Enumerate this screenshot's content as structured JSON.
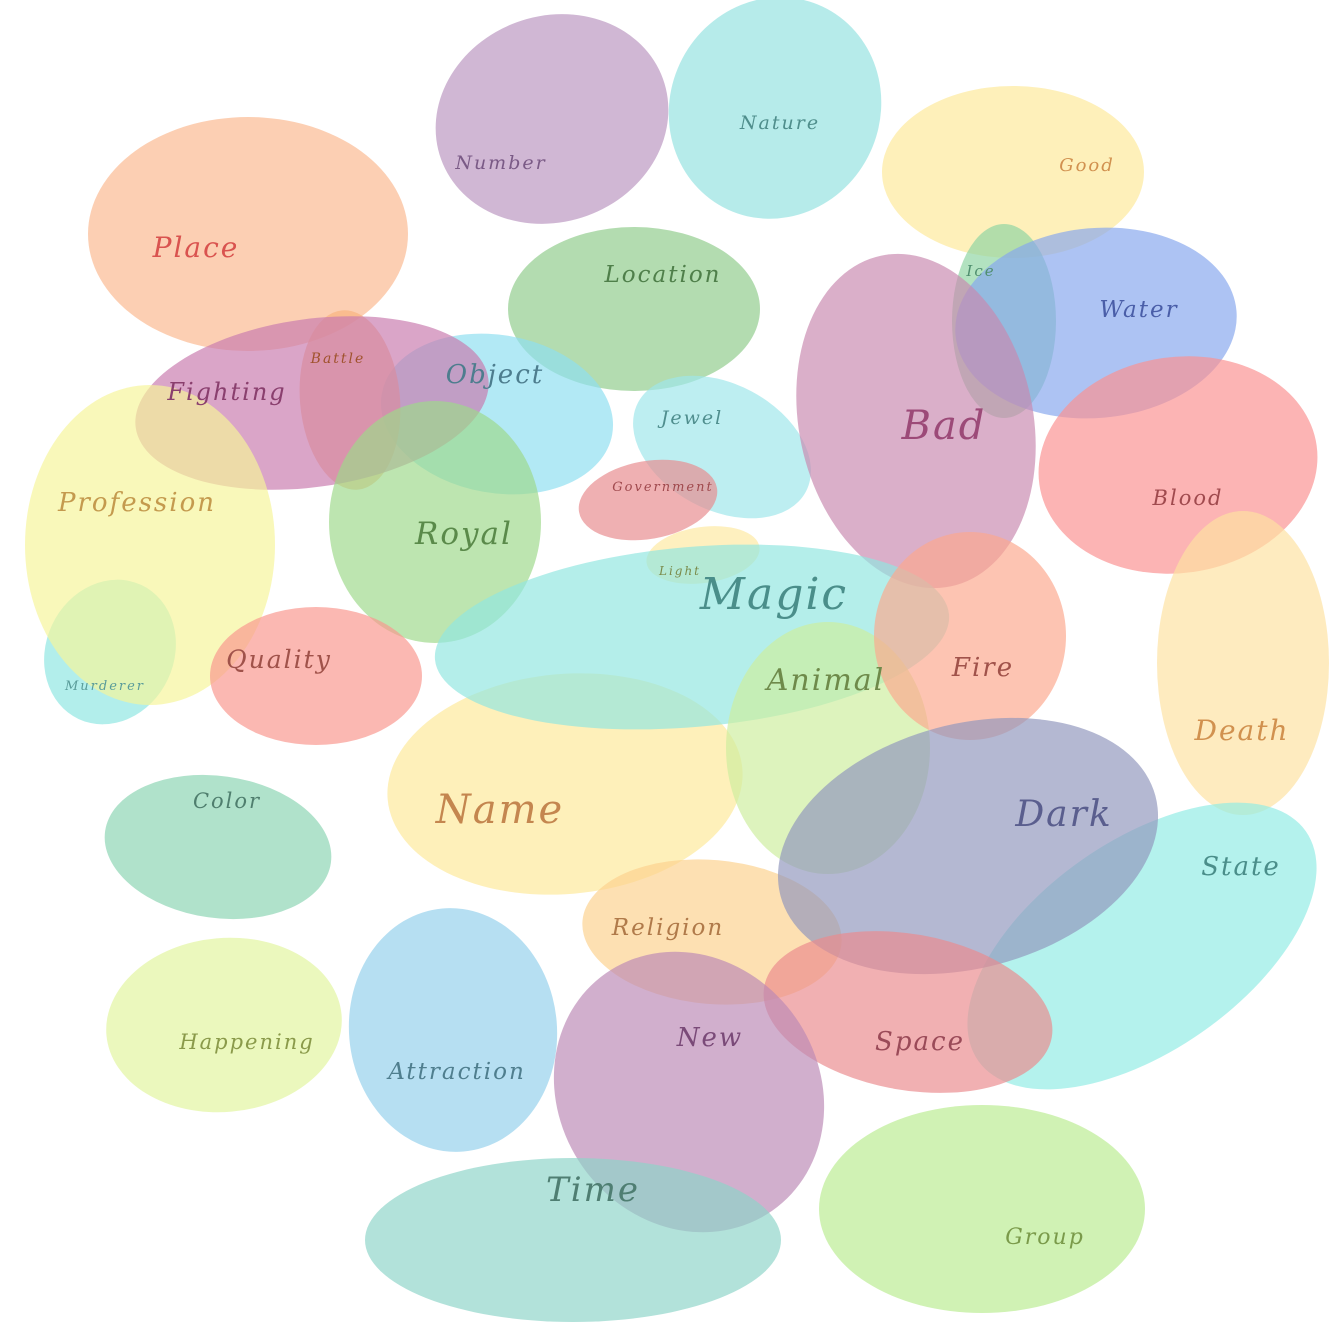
{
  "diagram": {
    "type": "bubble-cloud",
    "bubbles": [
      {
        "id": "murderer",
        "label": "Murderer",
        "fill": "#8ee6e2",
        "text_color": "#5a9c9a"
      },
      {
        "id": "place",
        "label": "Place",
        "fill": "#fbb88f",
        "text_color": "#d9534f"
      },
      {
        "id": "number",
        "label": "Number",
        "fill": "#b995bf",
        "text_color": "#7a5a86"
      },
      {
        "id": "nature",
        "label": "Nature",
        "fill": "#93e2e0",
        "text_color": "#4f8e8c"
      },
      {
        "id": "good",
        "label": "Good",
        "fill": "#fde99a",
        "text_color": "#d1914f"
      },
      {
        "id": "location",
        "label": "Location",
        "fill": "#8fcc8a",
        "text_color": "#4f7f4a"
      },
      {
        "id": "object",
        "label": "Object",
        "fill": "#8edff0",
        "text_color": "#4d7d8e"
      },
      {
        "id": "battle",
        "label": "Battle",
        "fill": "#f9b27e",
        "text_color": "#a0522d"
      },
      {
        "id": "fighting",
        "label": "Fighting",
        "fill": "#c97bae",
        "text_color": "#8a3f6e"
      },
      {
        "id": "profession",
        "label": "Profession",
        "fill": "#f6f599",
        "text_color": "#c49a4e"
      },
      {
        "id": "royal",
        "label": "Royal",
        "fill": "#9ed98a",
        "text_color": "#5a8a4a"
      },
      {
        "id": "jewel",
        "label": "Jewel",
        "fill": "#9ee6ea",
        "text_color": "#4f8e8e"
      },
      {
        "id": "government",
        "label": "Government",
        "fill": "#e88a8e",
        "text_color": "#a04a4e"
      },
      {
        "id": "light",
        "label": "Light",
        "fill": "#fde9a0",
        "text_color": "#7a8a4a"
      },
      {
        "id": "ice",
        "label": "Ice",
        "fill": "#8ed4a2",
        "text_color": "#4f8e6e"
      },
      {
        "id": "water",
        "label": "Water",
        "fill": "#86a6ee",
        "text_color": "#4a5ea8"
      },
      {
        "id": "bad",
        "label": "Bad",
        "fill": "#c889af",
        "text_color": "#9c4a78"
      },
      {
        "id": "blood",
        "label": "Blood",
        "fill": "#fa9090",
        "text_color": "#a04a4e"
      },
      {
        "id": "death",
        "label": "Death",
        "fill": "#fde2a0",
        "text_color": "#d1914f"
      },
      {
        "id": "quality",
        "label": "Quality",
        "fill": "#f9978e",
        "text_color": "#a0524a"
      },
      {
        "id": "name",
        "label": "Name",
        "fill": "#fde99a",
        "text_color": "#c4864f"
      },
      {
        "id": "magic",
        "label": "Magic",
        "fill": "#90e6e0",
        "text_color": "#4a8e8a"
      },
      {
        "id": "animal",
        "label": "Animal",
        "fill": "#cdee9e",
        "text_color": "#6e8a4a"
      },
      {
        "id": "fire",
        "label": "Fire",
        "fill": "#fca88e",
        "text_color": "#a0524a"
      },
      {
        "id": "color",
        "label": "Color",
        "fill": "#8ad4b2",
        "text_color": "#4f7e6e"
      },
      {
        "id": "happening",
        "label": "Happening",
        "fill": "#e2f49e",
        "text_color": "#8a9a4a"
      },
      {
        "id": "attraction",
        "label": "Attraction",
        "fill": "#94d0ec",
        "text_color": "#4f7e8e"
      },
      {
        "id": "religion",
        "label": "Religion",
        "fill": "#fcd28e",
        "text_color": "#b07a4a"
      },
      {
        "id": "state",
        "label": "State",
        "fill": "#90ece4",
        "text_color": "#4a8e8a"
      },
      {
        "id": "dark",
        "label": "Dark",
        "fill": "#9196bd",
        "text_color": "#5a5e8e"
      },
      {
        "id": "space",
        "label": "Space",
        "fill": "#ea8a8e",
        "text_color": "#9a4a58"
      },
      {
        "id": "new",
        "label": "New",
        "fill": "#bb89b6",
        "text_color": "#7a4a78"
      },
      {
        "id": "time",
        "label": "Time",
        "fill": "#8ed4c8",
        "text_color": "#4f7e72"
      },
      {
        "id": "group",
        "label": "Group",
        "fill": "#baec90",
        "text_color": "#7a9a4a"
      }
    ]
  }
}
